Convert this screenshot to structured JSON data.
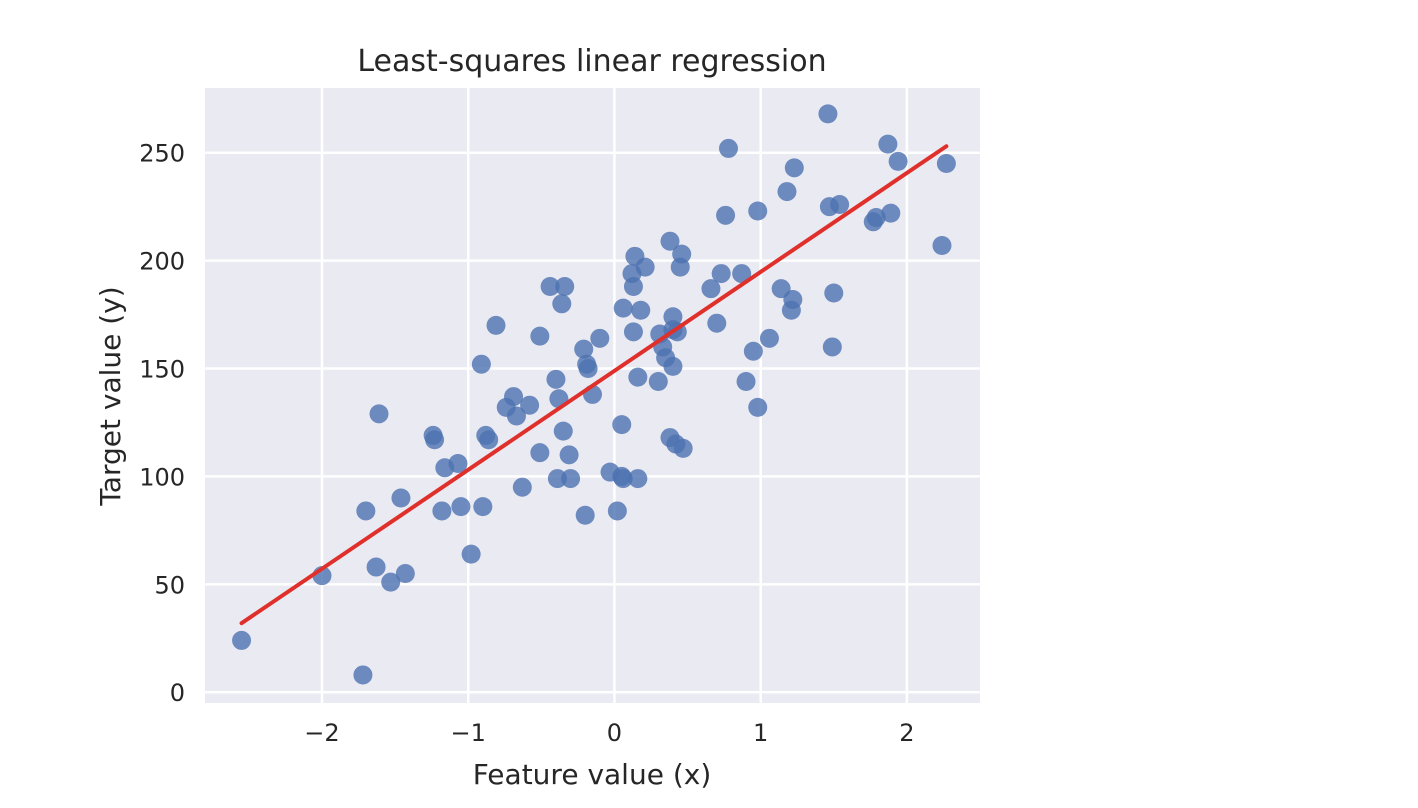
{
  "chart_data": {
    "type": "scatter",
    "title": "Least-squares linear regression",
    "xlabel": "Feature value (x)",
    "ylabel": "Target value (y)",
    "xlim": [
      -2.8,
      2.5
    ],
    "ylim": [
      -5,
      280
    ],
    "xticks": [
      -2,
      -1,
      0,
      1,
      2
    ],
    "xtick_labels": [
      "−2",
      "−1",
      "0",
      "1",
      "2"
    ],
    "yticks": [
      0,
      50,
      100,
      150,
      200,
      250
    ],
    "ytick_labels": [
      "0",
      "50",
      "100",
      "150",
      "200",
      "250"
    ],
    "grid": true,
    "background_color": "#eaeaf2",
    "point_color": "#4c72b0",
    "line_color": "#e0302b",
    "series": [
      {
        "type": "scatter",
        "points": [
          [
            -2.55,
            24
          ],
          [
            -2.0,
            54
          ],
          [
            -1.72,
            8
          ],
          [
            -1.7,
            84
          ],
          [
            -1.63,
            58
          ],
          [
            -1.61,
            129
          ],
          [
            -1.53,
            51
          ],
          [
            -1.46,
            90
          ],
          [
            -1.43,
            55
          ],
          [
            -1.24,
            119
          ],
          [
            -1.23,
            117
          ],
          [
            -1.18,
            84
          ],
          [
            -1.16,
            104
          ],
          [
            -1.07,
            106
          ],
          [
            -1.05,
            86
          ],
          [
            -0.98,
            64
          ],
          [
            -0.91,
            152
          ],
          [
            -0.9,
            86
          ],
          [
            -0.88,
            119
          ],
          [
            -0.86,
            117
          ],
          [
            -0.81,
            170
          ],
          [
            -0.74,
            132
          ],
          [
            -0.69,
            137
          ],
          [
            -0.67,
            128
          ],
          [
            -0.63,
            95
          ],
          [
            -0.58,
            133
          ],
          [
            -0.51,
            165
          ],
          [
            -0.51,
            111
          ],
          [
            -0.44,
            188
          ],
          [
            -0.4,
            145
          ],
          [
            -0.39,
            99
          ],
          [
            -0.38,
            136
          ],
          [
            -0.36,
            180
          ],
          [
            -0.35,
            121
          ],
          [
            -0.34,
            188
          ],
          [
            -0.31,
            110
          ],
          [
            -0.3,
            99
          ],
          [
            -0.21,
            159
          ],
          [
            -0.2,
            82
          ],
          [
            -0.19,
            152
          ],
          [
            -0.18,
            150
          ],
          [
            -0.15,
            138
          ],
          [
            -0.1,
            164
          ],
          [
            -0.03,
            102
          ],
          [
            0.02,
            84
          ],
          [
            0.05,
            124
          ],
          [
            0.05,
            100
          ],
          [
            0.06,
            178
          ],
          [
            0.06,
            99
          ],
          [
            0.12,
            194
          ],
          [
            0.13,
            188
          ],
          [
            0.13,
            167
          ],
          [
            0.14,
            202
          ],
          [
            0.16,
            99
          ],
          [
            0.16,
            146
          ],
          [
            0.18,
            177
          ],
          [
            0.21,
            197
          ],
          [
            0.3,
            144
          ],
          [
            0.31,
            166
          ],
          [
            0.33,
            160
          ],
          [
            0.35,
            155
          ],
          [
            0.38,
            209
          ],
          [
            0.38,
            118
          ],
          [
            0.4,
            151
          ],
          [
            0.4,
            174
          ],
          [
            0.4,
            168
          ],
          [
            0.42,
            115
          ],
          [
            0.43,
            167
          ],
          [
            0.45,
            197
          ],
          [
            0.46,
            203
          ],
          [
            0.47,
            113
          ],
          [
            0.66,
            187
          ],
          [
            0.7,
            171
          ],
          [
            0.73,
            194
          ],
          [
            0.76,
            221
          ],
          [
            0.78,
            252
          ],
          [
            0.87,
            194
          ],
          [
            0.9,
            144
          ],
          [
            0.95,
            158
          ],
          [
            0.98,
            132
          ],
          [
            0.98,
            223
          ],
          [
            1.06,
            164
          ],
          [
            1.14,
            187
          ],
          [
            1.18,
            232
          ],
          [
            1.21,
            177
          ],
          [
            1.22,
            182
          ],
          [
            1.23,
            243
          ],
          [
            1.46,
            268
          ],
          [
            1.47,
            225
          ],
          [
            1.49,
            160
          ],
          [
            1.5,
            185
          ],
          [
            1.54,
            226
          ],
          [
            1.77,
            218
          ],
          [
            1.79,
            220
          ],
          [
            1.87,
            254
          ],
          [
            1.89,
            222
          ],
          [
            1.94,
            246
          ],
          [
            2.24,
            207
          ],
          [
            2.27,
            245
          ]
        ]
      },
      {
        "type": "line",
        "points": [
          [
            -2.55,
            32
          ],
          [
            2.27,
            253
          ]
        ]
      }
    ]
  }
}
